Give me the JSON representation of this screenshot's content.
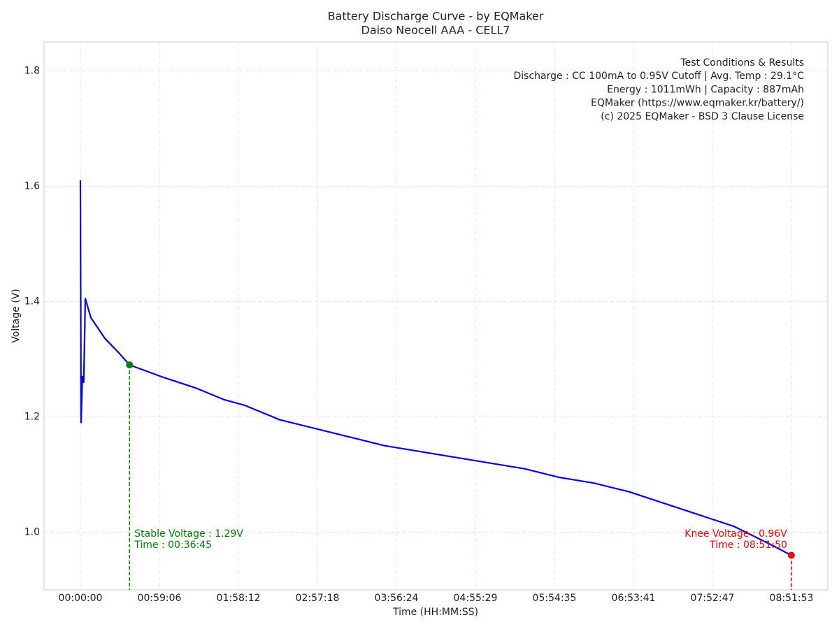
{
  "chart_data": {
    "type": "line",
    "title": "Battery Discharge Curve - by EQMaker",
    "subtitle": "Daiso Neocell AAA - CELL7",
    "x_label": "Time (HH:MM:SS)",
    "y_label": "Voltage (V)",
    "x": [
      0,
      30,
      90,
      150,
      220,
      470,
      1098,
      1726,
      2205,
      3608,
      5177,
      6432,
      7373,
      8942,
      10511,
      12080,
      13649,
      15218,
      16787,
      18356,
      19925,
      21494,
      23063,
      24631,
      26200,
      27769,
      29338,
      30907,
      31910
    ],
    "series": [
      {
        "color": "#0000ee",
        "values": [
          1.61,
          1.19,
          1.27,
          1.26,
          1.405,
          1.372,
          1.336,
          1.311,
          1.29,
          1.27,
          1.25,
          1.23,
          1.22,
          1.195,
          1.18,
          1.165,
          1.15,
          1.14,
          1.13,
          1.12,
          1.11,
          1.095,
          1.085,
          1.07,
          1.05,
          1.03,
          1.01,
          0.98,
          0.96
        ]
      }
    ],
    "points": [
      {
        "x": 2205,
        "y": 1.29,
        "color": "#008000",
        "label": [
          "Stable Voltage : 1.29V",
          "Time : 00:36:45"
        ]
      },
      {
        "x": 31910,
        "y": 0.96,
        "color": "#ff0000",
        "label": [
          "Knee Voltage : 0.96V",
          "Time : 08:51:50"
        ]
      }
    ],
    "info_box": [
      "Test Conditions & Results",
      "Discharge : CC 100mA to 0.95V Cutoff | Avg. Temp : 29.1°C",
      "Energy : 1011mWh | Capacity : 887mAh",
      "EQMaker (https://www.eqmaker.kr/battery/)",
      "(c) 2025 EQMaker - BSD 3 Clause License"
    ],
    "xlim": [
      -1632,
      33545
    ],
    "ylim": [
      0.9,
      1.85
    ],
    "xticks": [
      {
        "value": 0,
        "label": "00:00:00"
      },
      {
        "value": 3545.9,
        "label": "00:59:06"
      },
      {
        "value": 7091.8,
        "label": "01:58:12"
      },
      {
        "value": 10637.7,
        "label": "02:57:18"
      },
      {
        "value": 14183.6,
        "label": "03:56:24"
      },
      {
        "value": 17729.4,
        "label": "04:55:29"
      },
      {
        "value": 21275.3,
        "label": "05:54:35"
      },
      {
        "value": 24821.2,
        "label": "06:53:41"
      },
      {
        "value": 28367.1,
        "label": "07:52:47"
      },
      {
        "value": 31913,
        "label": "08:51:53"
      }
    ],
    "yticks": [
      {
        "value": 1,
        "label": "1.0"
      },
      1.2,
      1.4,
      1.6,
      1.8
    ],
    "grid": true
  }
}
